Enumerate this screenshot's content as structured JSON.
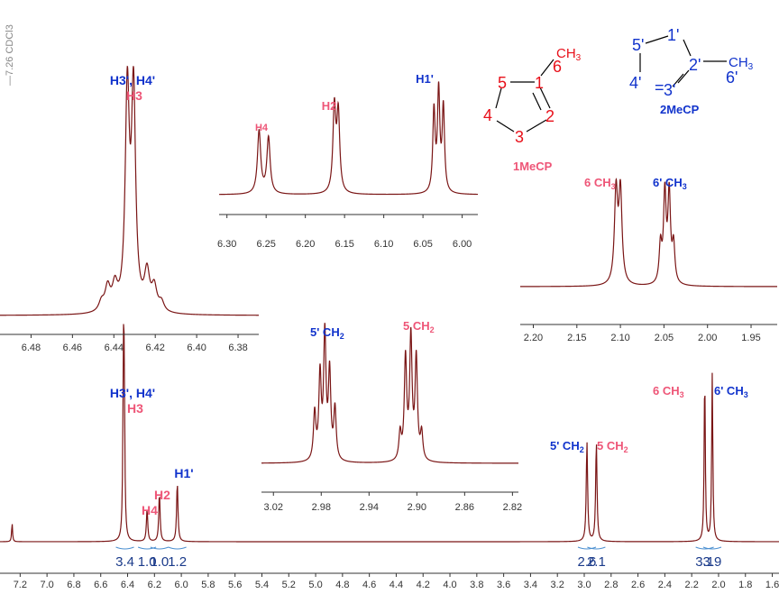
{
  "colors": {
    "trace": "#7a1515",
    "axis": "#333333",
    "pink": "#ee5577",
    "blue": "#1133cc",
    "integral": "#1a3a8a",
    "struct_red": "#e8101a"
  },
  "solvent_label": "—7.26 CDCl3",
  "chart_data": [
    {
      "id": "main",
      "type": "line",
      "xlim": [
        7.35,
        1.55
      ],
      "ticks": [
        "7.2",
        "7.0",
        "6.8",
        "6.6",
        "6.4",
        "6.2",
        "6.0",
        "5.8",
        "5.6",
        "5.4",
        "5.2",
        "5.0",
        "4.8",
        "4.6",
        "4.4",
        "4.2",
        "4.0",
        "3.8",
        "3.6",
        "3.4",
        "3.2",
        "3.0",
        "2.8",
        "2.6",
        "2.4",
        "2.2",
        "2.0",
        "1.8",
        "1.6"
      ],
      "peaks": [
        {
          "x": 7.26,
          "h": 0.07,
          "w": 0.004
        },
        {
          "x": 6.431,
          "h": 0.58,
          "w": 0.005
        },
        {
          "x": 6.425,
          "h": 0.5,
          "w": 0.005
        },
        {
          "x": 6.255,
          "h": 0.12,
          "w": 0.006
        },
        {
          "x": 6.163,
          "h": 0.18,
          "w": 0.006
        },
        {
          "x": 6.03,
          "h": 0.22,
          "w": 0.006
        },
        {
          "x": 2.98,
          "h": 0.37,
          "w": 0.006
        },
        {
          "x": 2.91,
          "h": 0.37,
          "w": 0.006
        },
        {
          "x": 2.103,
          "h": 0.62,
          "w": 0.005
        },
        {
          "x": 2.047,
          "h": 0.62,
          "w": 0.005
        }
      ],
      "integrals": [
        {
          "x": 6.42,
          "value": "3.4"
        },
        {
          "x": 6.255,
          "value": "1.0"
        },
        {
          "x": 6.163,
          "value": "1.0"
        },
        {
          "x": 6.03,
          "value": "1.2"
        },
        {
          "x": 2.98,
          "value": "2.6"
        },
        {
          "x": 2.91,
          "value": "2.1"
        },
        {
          "x": 2.103,
          "value": "3.1"
        },
        {
          "x": 2.047,
          "value": "3.9"
        }
      ]
    },
    {
      "id": "inset_h3",
      "type": "line",
      "xlim": [
        6.495,
        6.37
      ],
      "ticks": [
        "6.48",
        "6.46",
        "6.44",
        "6.42",
        "6.40",
        "6.38"
      ],
      "peaks": [
        {
          "x": 6.4335,
          "h": 0.92,
          "w": 0.0012
        },
        {
          "x": 6.4305,
          "h": 0.92,
          "w": 0.0012
        },
        {
          "x": 6.443,
          "h": 0.1,
          "w": 0.0015
        },
        {
          "x": 6.4395,
          "h": 0.1,
          "w": 0.0015
        },
        {
          "x": 6.424,
          "h": 0.16,
          "w": 0.0015
        },
        {
          "x": 6.4205,
          "h": 0.1,
          "w": 0.0015
        },
        {
          "x": 6.446,
          "h": 0.04,
          "w": 0.0015
        },
        {
          "x": 6.417,
          "h": 0.04,
          "w": 0.0015
        }
      ]
    },
    {
      "id": "inset_olefin",
      "type": "line",
      "xlim": [
        6.31,
        5.98
      ],
      "ticks": [
        "6.30",
        "6.25",
        "6.20",
        "6.15",
        "6.10",
        "6.05",
        "6.00"
      ],
      "peaks": [
        {
          "x": 6.259,
          "h": 0.58,
          "w": 0.0025
        },
        {
          "x": 6.247,
          "h": 0.52,
          "w": 0.0025
        },
        {
          "x": 6.163,
          "h": 0.78,
          "w": 0.0022
        },
        {
          "x": 6.158,
          "h": 0.72,
          "w": 0.0022
        },
        {
          "x": 6.036,
          "h": 0.75,
          "w": 0.0018
        },
        {
          "x": 6.03,
          "h": 0.92,
          "w": 0.0018
        },
        {
          "x": 6.024,
          "h": 0.78,
          "w": 0.0018
        }
      ]
    },
    {
      "id": "inset_ch3",
      "type": "line",
      "xlim": [
        2.215,
        1.92
      ],
      "ticks": [
        "2.20",
        "2.15",
        "2.10",
        "2.05",
        "2.00",
        "1.95"
      ],
      "peaks": [
        {
          "x": 2.105,
          "h": 0.85,
          "w": 0.0022
        },
        {
          "x": 2.1,
          "h": 0.85,
          "w": 0.0022
        },
        {
          "x": 2.054,
          "h": 0.35,
          "w": 0.0018
        },
        {
          "x": 2.049,
          "h": 0.82,
          "w": 0.0018
        },
        {
          "x": 2.044,
          "h": 0.82,
          "w": 0.0018
        },
        {
          "x": 2.039,
          "h": 0.35,
          "w": 0.0018
        }
      ]
    },
    {
      "id": "inset_ch2",
      "type": "line",
      "xlim": [
        3.03,
        2.815
      ],
      "ticks": [
        "3.02",
        "2.98",
        "2.94",
        "2.90",
        "2.86",
        "2.82"
      ],
      "peaks": [
        {
          "x": 2.9855,
          "h": 0.35,
          "w": 0.0012
        },
        {
          "x": 2.981,
          "h": 0.62,
          "w": 0.0012
        },
        {
          "x": 2.977,
          "h": 0.92,
          "w": 0.0012
        },
        {
          "x": 2.973,
          "h": 0.64,
          "w": 0.0012
        },
        {
          "x": 2.9685,
          "h": 0.38,
          "w": 0.0012
        },
        {
          "x": 2.9095,
          "h": 0.75,
          "w": 0.0012
        },
        {
          "x": 2.905,
          "h": 0.9,
          "w": 0.0012
        },
        {
          "x": 2.9005,
          "h": 0.75,
          "w": 0.0012
        },
        {
          "x": 2.914,
          "h": 0.2,
          "w": 0.0012
        },
        {
          "x": 2.896,
          "h": 0.2,
          "w": 0.0012
        }
      ]
    }
  ],
  "labels": {
    "main_h3_h4p": "H3', H4'",
    "main_h3": "H3",
    "main_h2": "H2",
    "main_h4": "H4",
    "main_h1p": "H1'",
    "main_5p_ch2": "5' CH",
    "main_5_ch2": "5 CH",
    "main_6_ch3": "6 CH",
    "main_6p_ch3": "6' CH",
    "inset1_h3_h4p": "H3', H4'",
    "inset1_h3": "H3",
    "inset2_h4": "H4",
    "inset2_h2": "H2",
    "inset2_h1p": "H1'",
    "inset3_6_ch3": "6 CH",
    "inset3_6p_ch3": "6' CH",
    "inset4_5p_ch2": "5' CH",
    "inset4_5_ch2": "5 CH",
    "sub2": "2",
    "sub3": "3"
  },
  "structures": {
    "mol1": {
      "name": "1MeCP",
      "atoms": [
        "5",
        "1",
        "2",
        "3",
        "4",
        "6"
      ],
      "methyl": "CH",
      "methyl_sub": "3"
    },
    "mol2": {
      "name": "2MeCP",
      "atoms": [
        "5'",
        "1'",
        "2'",
        "3'",
        "4'",
        "6'"
      ],
      "methyl": "CH",
      "methyl_sub": "3"
    }
  }
}
